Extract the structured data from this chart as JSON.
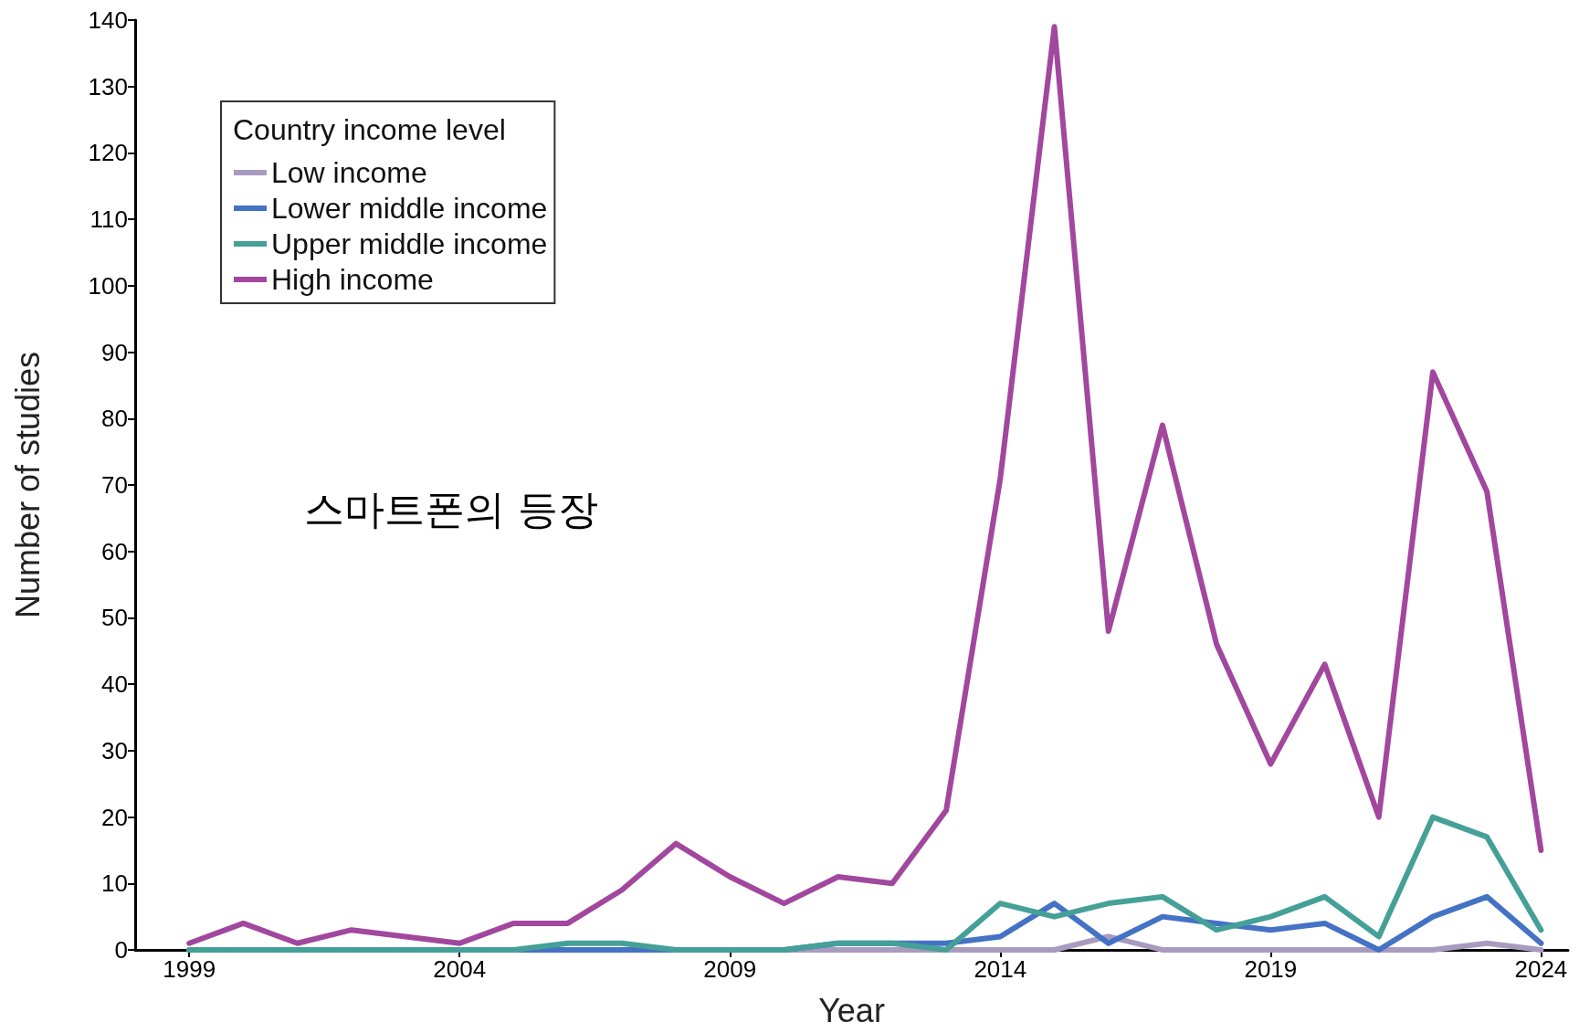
{
  "chart_data": {
    "type": "line",
    "xlabel": "Year",
    "ylabel": "Number of studies",
    "legend_title": "Country income level",
    "legend": "top left",
    "x": [
      1999,
      2000,
      2001,
      2002,
      2003,
      2004,
      2005,
      2006,
      2007,
      2008,
      2009,
      2010,
      2011,
      2012,
      2013,
      2014,
      2015,
      2016,
      2017,
      2018,
      2019,
      2020,
      2021,
      2022,
      2023,
      2024
    ],
    "series": [
      {
        "name": "Low income",
        "color": "#a99bc0",
        "values": [
          0,
          0,
          0,
          0,
          0,
          0,
          0,
          0,
          0,
          0,
          0,
          0,
          0,
          0,
          0,
          0,
          0,
          2,
          0,
          0,
          0,
          0,
          0,
          0,
          1,
          0
        ]
      },
      {
        "name": "Lower middle income",
        "color": "#4472c4",
        "values": [
          0,
          0,
          0,
          0,
          0,
          0,
          0,
          0,
          0,
          0,
          0,
          0,
          1,
          1,
          1,
          2,
          7,
          1,
          5,
          4,
          3,
          4,
          0,
          5,
          8,
          1
        ]
      },
      {
        "name": "Upper middle income",
        "color": "#45a097",
        "values": [
          0,
          0,
          0,
          0,
          0,
          0,
          0,
          1,
          1,
          0,
          0,
          0,
          1,
          1,
          0,
          7,
          5,
          7,
          8,
          3,
          5,
          8,
          2,
          20,
          17,
          3
        ]
      },
      {
        "name": "High income",
        "color": "#a2479e",
        "values": [
          1,
          4,
          1,
          3,
          2,
          1,
          4,
          4,
          9,
          16,
          11,
          7,
          11,
          10,
          21,
          71,
          139,
          48,
          79,
          46,
          28,
          43,
          20,
          87,
          69,
          15
        ]
      }
    ],
    "xlim": [
      1998,
      2024.5
    ],
    "xticks": [
      1999,
      2004,
      2009,
      2014,
      2019,
      2024
    ],
    "ylim": [
      0,
      140
    ],
    "yticks": [
      0,
      10,
      20,
      30,
      40,
      50,
      60,
      70,
      80,
      90,
      100,
      110,
      120,
      130,
      140
    ],
    "grid": false,
    "marker": "none",
    "line_style": "solid",
    "annotations": [
      "스마트폰의 등장"
    ]
  }
}
